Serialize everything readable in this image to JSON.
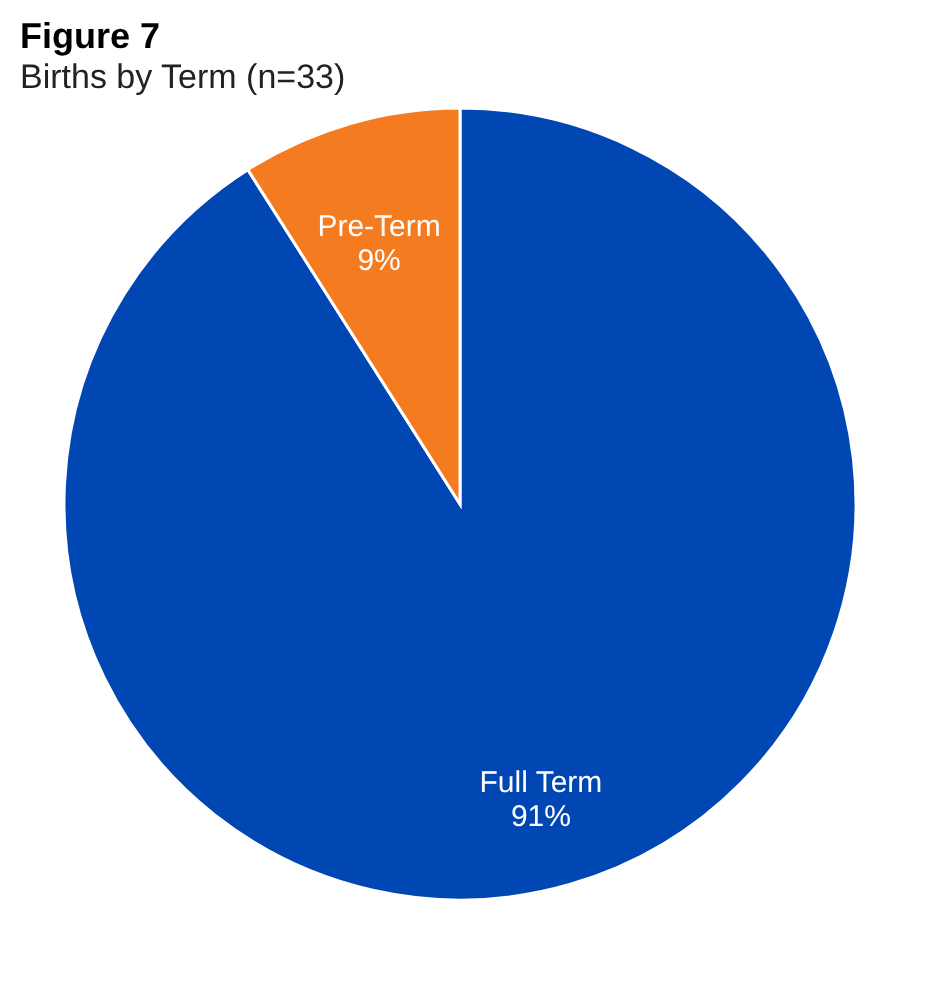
{
  "chart_data": {
    "type": "pie",
    "title": "Figure 7",
    "subtitle": "Births by Term (n=33)",
    "categories": [
      "Full Term",
      "Pre-Term"
    ],
    "values": [
      91,
      9
    ],
    "colors": [
      "#0047b4",
      "#f47b20"
    ],
    "value_labels": [
      "91%",
      "9%"
    ],
    "legend": false
  }
}
